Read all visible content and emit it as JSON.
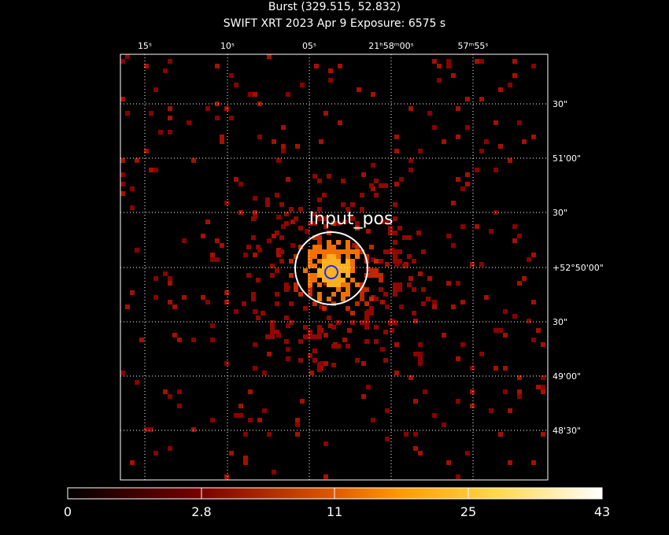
{
  "header": {
    "title": "Burst (329.515, 52.832)",
    "subtitle": "SWIFT XRT   2023 Apr  9    Exposure: 6575 s"
  },
  "axes": {
    "top_labels": [
      "15ˢ",
      "10ˢ",
      "05ˢ",
      "21ʰ58ᵐ00ˢ",
      "57ᵐ55ˢ"
    ],
    "right_labels": [
      "30\"",
      "51'00\"",
      "30\"",
      "+52°50'00\"",
      "30\"",
      "49'00\"",
      "48'30\""
    ]
  },
  "annotation": "Input_pos",
  "colorbar": {
    "labels": [
      "0",
      "2.8",
      "11",
      "25",
      "43"
    ]
  }
}
